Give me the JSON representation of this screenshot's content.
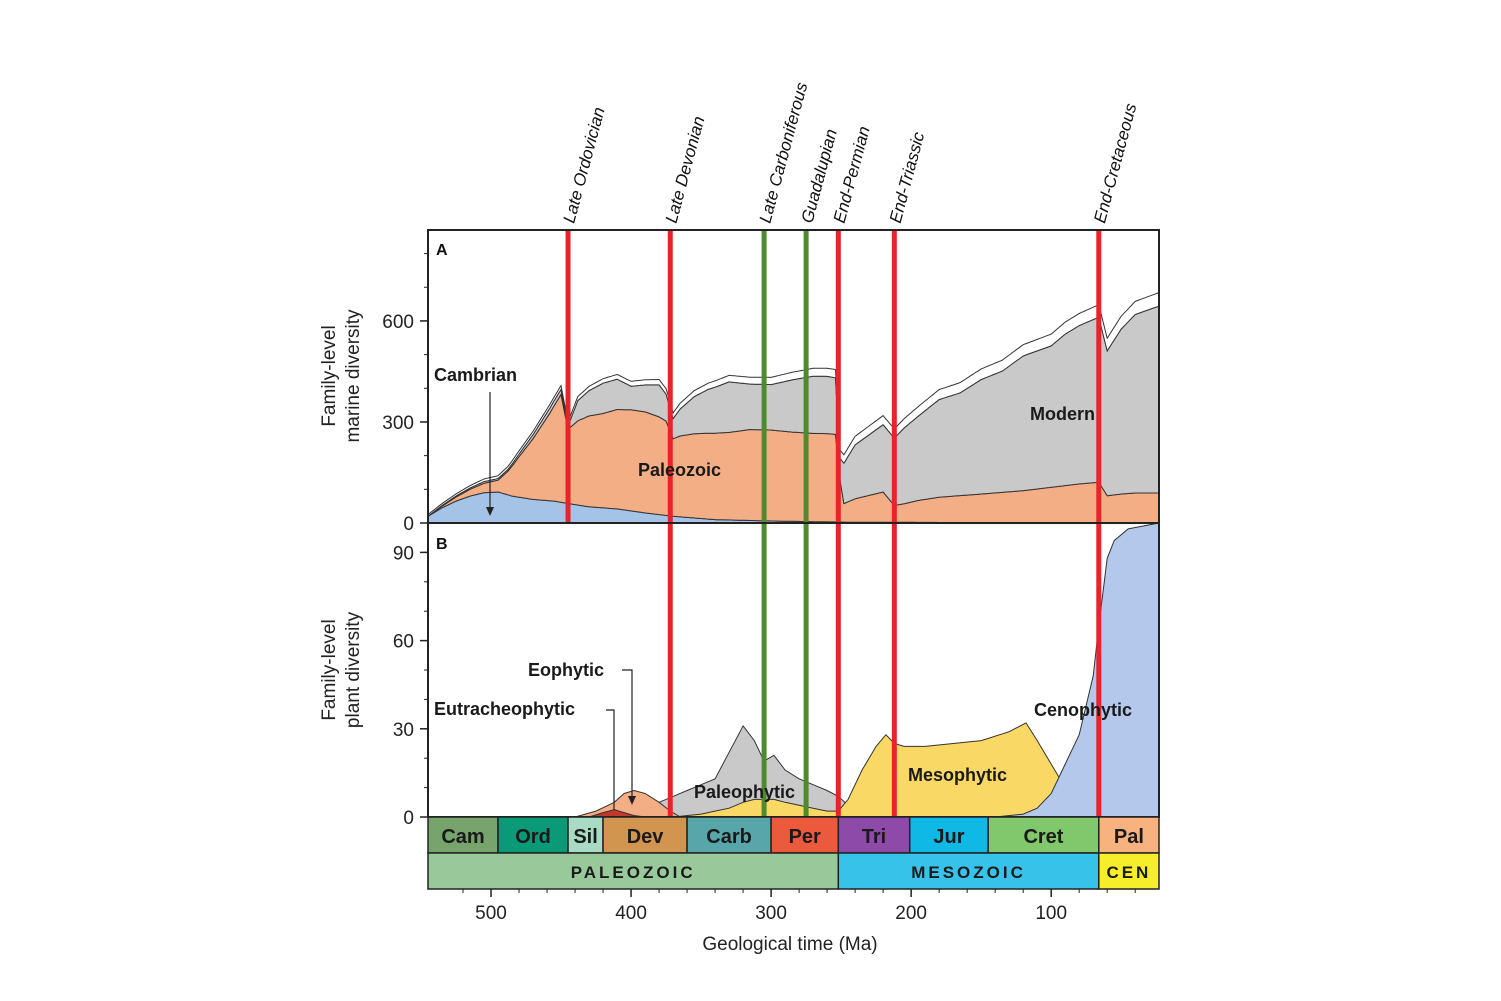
{
  "chart_data": [
    {
      "panel": "A",
      "type": "area",
      "ylabel": [
        "Family-level",
        "marine diversity"
      ],
      "xlabel": "Geological time (Ma)",
      "xlim": [
        545,
        23
      ],
      "ylim": [
        0,
        870
      ],
      "yticks": [
        0,
        300,
        600
      ],
      "series": [
        {
          "name": "Cambrian",
          "color": "#a5c3e6",
          "x": [
            545,
            535,
            525,
            515,
            505,
            495,
            485,
            470,
            455,
            445,
            430,
            410,
            390,
            370,
            340,
            300,
            270,
            252,
            240,
            200,
            150,
            100,
            66,
            23
          ],
          "values": [
            20,
            45,
            65,
            80,
            90,
            92,
            80,
            70,
            65,
            58,
            48,
            42,
            30,
            20,
            10,
            6,
            4,
            3,
            2,
            2,
            1,
            1,
            1,
            1
          ]
        },
        {
          "name": "Paleozoic",
          "color": "#f3ae86",
          "x": [
            545,
            535,
            525,
            515,
            505,
            495,
            488,
            480,
            470,
            458,
            450,
            445,
            438,
            430,
            420,
            410,
            400,
            390,
            380,
            375,
            370,
            365,
            355,
            345,
            330,
            315,
            300,
            285,
            270,
            260,
            254,
            251,
            248,
            240,
            230,
            220,
            212,
            205,
            195,
            180,
            165,
            150,
            135,
            120,
            110,
            100,
            90,
            80,
            66,
            60,
            50,
            40,
            30,
            23
          ],
          "values": [
            0,
            5,
            12,
            20,
            28,
            35,
            70,
            120,
            180,
            260,
            320,
            220,
            250,
            270,
            280,
            295,
            300,
            300,
            290,
            280,
            230,
            240,
            250,
            255,
            260,
            270,
            270,
            265,
            262,
            262,
            260,
            130,
            55,
            70,
            80,
            90,
            50,
            55,
            65,
            75,
            80,
            85,
            90,
            95,
            100,
            105,
            110,
            115,
            120,
            80,
            85,
            88,
            88,
            88
          ]
        },
        {
          "name": "Modern",
          "color": "#c9c9c9",
          "x": [
            545,
            535,
            525,
            515,
            505,
            495,
            488,
            480,
            470,
            458,
            450,
            445,
            438,
            430,
            420,
            410,
            400,
            390,
            380,
            375,
            370,
            365,
            355,
            345,
            330,
            315,
            300,
            285,
            270,
            260,
            254,
            251,
            248,
            240,
            230,
            220,
            212,
            205,
            195,
            180,
            165,
            150,
            135,
            120,
            110,
            100,
            90,
            80,
            66,
            60,
            50,
            40,
            30,
            23
          ],
          "values": [
            0,
            2,
            3,
            4,
            5,
            5,
            5,
            8,
            12,
            15,
            15,
            10,
            60,
            75,
            90,
            90,
            70,
            80,
            95,
            80,
            60,
            80,
            110,
            130,
            150,
            135,
            135,
            155,
            170,
            170,
            168,
            60,
            120,
            160,
            180,
            200,
            200,
            225,
            250,
            290,
            305,
            340,
            360,
            400,
            410,
            420,
            450,
            470,
            490,
            430,
            490,
            530,
            545,
            555
          ]
        },
        {
          "name": "",
          "color": "#ffffff",
          "x": [
            545,
            23
          ],
          "values": [
            5,
            40
          ]
        }
      ],
      "labels": [
        "Cambrian",
        "Paleozoic",
        "Modern"
      ]
    },
    {
      "panel": "B",
      "type": "area",
      "ylabel": [
        "Family-level",
        "plant diversity"
      ],
      "xlabel": "Geological time (Ma)",
      "xlim": [
        545,
        23
      ],
      "ylim": [
        0,
        100
      ],
      "yticks": [
        0,
        30,
        60,
        90
      ],
      "series": [
        {
          "name": "Eutracheophytic",
          "color": "#c0392b",
          "x": [
            430,
            420,
            412,
            405,
            398,
            390
          ],
          "values": [
            0,
            1.5,
            2.5,
            1.5,
            0.5,
            0
          ]
        },
        {
          "name": "Eophytic",
          "color": "#f3ae86",
          "x": [
            440,
            425,
            412,
            405,
            398,
            390,
            380,
            372,
            365
          ],
          "values": [
            0,
            2,
            5,
            8,
            9,
            8,
            5,
            2,
            0
          ]
        },
        {
          "name": "Paleophytic",
          "color": "#c9c9c9",
          "x": [
            420,
            410,
            400,
            390,
            380,
            370,
            360,
            350,
            340,
            330,
            320,
            312,
            305,
            298,
            290,
            280,
            270,
            260,
            252,
            245,
            235,
            225,
            215,
            205,
            190,
            170,
            150,
            130,
            110,
            90,
            70,
            50,
            30,
            23
          ],
          "values": [
            0,
            1,
            1,
            3,
            5,
            7,
            9,
            11,
            13,
            22,
            31,
            26,
            19,
            21,
            16,
            13,
            11,
            9,
            7,
            4,
            2,
            1,
            1,
            1,
            1,
            1,
            1,
            1,
            0.5,
            0.5,
            0.5,
            0.5,
            0.5,
            0.5
          ]
        },
        {
          "name": "Mesophytic",
          "color": "#f9d866",
          "x": [
            370,
            350,
            340,
            330,
            320,
            312,
            305,
            298,
            290,
            280,
            270,
            260,
            252,
            245,
            235,
            225,
            218,
            212,
            205,
            190,
            170,
            150,
            130,
            118,
            110,
            100,
            90,
            80,
            70,
            60,
            40,
            23
          ],
          "values": [
            0,
            1,
            2,
            3,
            5,
            6,
            6,
            6,
            5,
            4,
            3,
            2,
            2,
            6,
            16,
            24,
            28,
            25,
            24,
            24,
            25,
            26,
            29,
            32,
            26,
            18,
            10,
            4,
            1,
            0.5,
            0.5,
            0.5
          ]
        },
        {
          "name": "Cenophytic",
          "color": "#b4c8ec",
          "x": [
            140,
            120,
            110,
            100,
            90,
            80,
            70,
            66,
            60,
            55,
            45,
            23
          ],
          "values": [
            0,
            1,
            3,
            8,
            18,
            28,
            48,
            65,
            88,
            94,
            98,
            100
          ]
        }
      ],
      "labels": [
        "Cenophytic",
        "Mesophytic",
        "Paleophytic",
        "Eophytic",
        "Eutracheophytic"
      ]
    }
  ],
  "figure": {
    "panel_a_letter": "A",
    "panel_b_letter": "B",
    "x_title": "Geological time (Ma)",
    "y_title_a": [
      "Family-level",
      "marine diversity"
    ],
    "y_title_b": [
      "Family-level",
      "plant diversity"
    ],
    "xticks": [
      500,
      400,
      300,
      200,
      100
    ],
    "events": [
      {
        "label": "Late Ordovician",
        "age": 445,
        "color": "#e8242b",
        "in_b": false
      },
      {
        "label": "Late Devonian",
        "age": 372,
        "color": "#e8242b",
        "in_b": true
      },
      {
        "label": "Late Carboniferous",
        "age": 305,
        "color": "#4f8a2f",
        "in_b": true
      },
      {
        "label": "Guadalupian",
        "age": 275,
        "color": "#4f8a2f",
        "in_b": true
      },
      {
        "label": "End-Permian",
        "age": 252,
        "color": "#e8242b",
        "in_b": true
      },
      {
        "label": "End-Triassic",
        "age": 212,
        "color": "#e8242b",
        "in_b": true
      },
      {
        "label": "End-Cretaceous",
        "age": 66,
        "color": "#e8242b",
        "in_b": true
      }
    ],
    "periods": [
      {
        "label": "Cam",
        "start": 545,
        "end": 495,
        "color": "#77a36d"
      },
      {
        "label": "Ord",
        "start": 495,
        "end": 445,
        "color": "#0a9a78"
      },
      {
        "label": "Sil",
        "start": 445,
        "end": 420,
        "color": "#a9dbc4"
      },
      {
        "label": "Dev",
        "start": 420,
        "end": 360,
        "color": "#d19550"
      },
      {
        "label": "Carb",
        "start": 360,
        "end": 300,
        "color": "#58a6aa"
      },
      {
        "label": "Per",
        "start": 300,
        "end": 252,
        "color": "#eb5a3c"
      },
      {
        "label": "Tri",
        "start": 252,
        "end": 201,
        "color": "#8e4aa8"
      },
      {
        "label": "Jur",
        "start": 201,
        "end": 145,
        "color": "#10b8e6"
      },
      {
        "label": "Cret",
        "start": 145,
        "end": 66,
        "color": "#81c86c"
      },
      {
        "label": "Pal",
        "start": 66,
        "end": 23,
        "color": "#f7b27f"
      }
    ],
    "eras": [
      {
        "label": "PALEOZOIC",
        "start": 545,
        "end": 252,
        "color": "#99c99a"
      },
      {
        "label": "MESOZOIC",
        "start": 252,
        "end": 66,
        "color": "#37c2ea"
      },
      {
        "label": "CEN",
        "start": 66,
        "end": 23,
        "color": "#f6ee2a"
      }
    ]
  }
}
